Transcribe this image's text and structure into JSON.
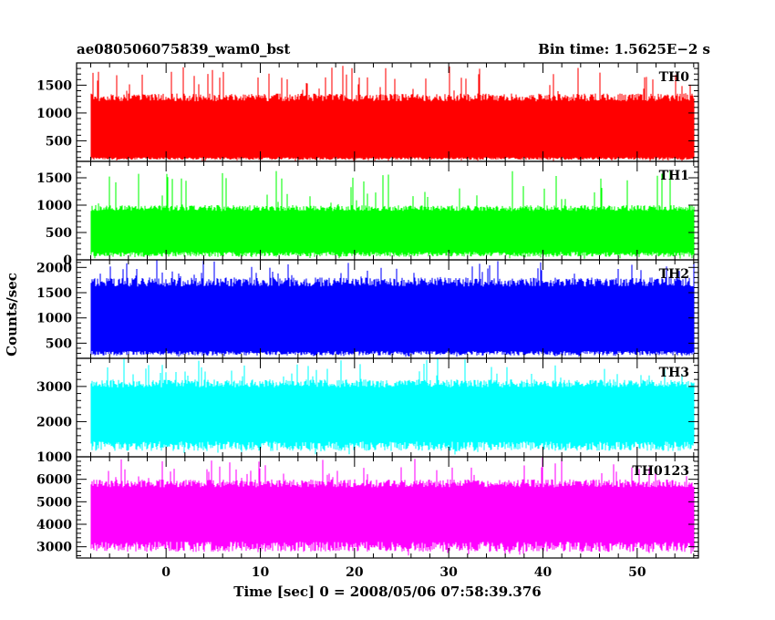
{
  "header": {
    "left": "ae080506075839_wam0_bst",
    "right": "Bin time: 1.5625E−2 s"
  },
  "chart_data": {
    "type": "line",
    "xlabel": "Time [sec] 0 = 2008/05/06 07:58:39.376",
    "ylabel": "Counts/sec",
    "xlim": [
      -9.5,
      56.5
    ],
    "x_ticks": [
      "0",
      "10",
      "20",
      "30",
      "40",
      "50"
    ],
    "x_tick_values": [
      0,
      10,
      20,
      30,
      40,
      50
    ],
    "data_x_range": [
      -8,
      56
    ],
    "bin_time_s": 0.015625,
    "grid": false,
    "panels": [
      {
        "label": "TH0",
        "color": "#ff0000",
        "ylim": [
          130,
          1900
        ],
        "y_ticks": [
          500,
          1000,
          1500
        ],
        "y_tick_labels": [
          "500",
          "1000",
          "1500"
        ],
        "series": {
          "typical_low": 180,
          "typical_high": 1350,
          "min": 130,
          "max": 1850
        }
      },
      {
        "label": "TH1",
        "color": "#00ff00",
        "ylim": [
          0,
          1800
        ],
        "y_ticks": [
          0,
          500,
          1000,
          1500
        ],
        "y_tick_labels": [
          "0",
          "500",
          "1000",
          "1500"
        ],
        "series": {
          "typical_low": 100,
          "typical_high": 1000,
          "min": 20,
          "max": 1650
        }
      },
      {
        "label": "TH2",
        "color": "#0000ff",
        "ylim": [
          200,
          2150
        ],
        "y_ticks": [
          500,
          1000,
          1500,
          2000
        ],
        "y_tick_labels": [
          "500",
          "1000",
          "1500",
          "2000"
        ],
        "series": {
          "typical_low": 300,
          "typical_high": 1800,
          "min": 230,
          "max": 2150
        }
      },
      {
        "label": "TH3",
        "color": "#00ffff",
        "ylim": [
          1000,
          3800
        ],
        "y_ticks": [
          1000,
          2000,
          3000
        ],
        "y_tick_labels": [
          "1000",
          "2000",
          "3000"
        ],
        "series": {
          "typical_low": 1300,
          "typical_high": 3200,
          "min": 1050,
          "max": 3800
        }
      },
      {
        "label": "TH0123",
        "color": "#ff00ff",
        "ylim": [
          2500,
          7000
        ],
        "y_ticks": [
          3000,
          4000,
          5000,
          6000
        ],
        "y_tick_labels": [
          "3000",
          "4000",
          "5000",
          "6000"
        ],
        "series": {
          "typical_low": 3000,
          "typical_high": 6000,
          "min": 2600,
          "max": 7000
        }
      }
    ]
  }
}
